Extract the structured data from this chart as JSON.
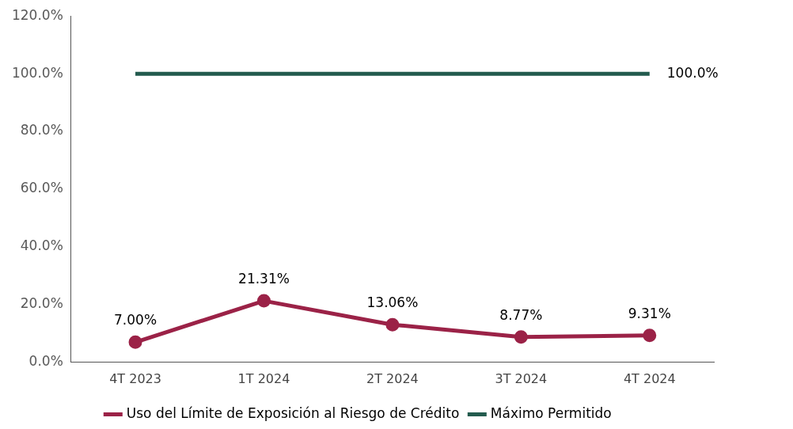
{
  "chart_data": {
    "type": "line",
    "categories": [
      "4T 2023",
      "1T 2024",
      "2T 2024",
      "3T 2024",
      "4T 2024"
    ],
    "series": [
      {
        "name": "Uso del Límite de Exposición al Riesgo de Crédito",
        "color": "#9b2247",
        "marker": "circle",
        "values": [
          7.0,
          21.31,
          13.06,
          8.77,
          9.31
        ],
        "value_labels": [
          "7.00%",
          "21.31%",
          "13.06%",
          "8.77%",
          "9.31%"
        ]
      },
      {
        "name": "Máximo Permitido",
        "color": "#235b4e",
        "marker": "none",
        "values": [
          100,
          100,
          100,
          100,
          100
        ],
        "value_labels": [
          null,
          null,
          null,
          null,
          "100.0%"
        ]
      }
    ],
    "ylim": [
      0,
      120
    ],
    "yticks": [
      {
        "value": 0,
        "label": "0.0%"
      },
      {
        "value": 20,
        "label": "20.0%"
      },
      {
        "value": 40,
        "label": "40.0%"
      },
      {
        "value": 60,
        "label": "60.0%"
      },
      {
        "value": 80,
        "label": "80.0%"
      },
      {
        "value": 100,
        "label": "100.0%"
      },
      {
        "value": 120,
        "label": "120.0%"
      }
    ],
    "grid": false,
    "legend": "bottom",
    "line_style": "solid"
  }
}
